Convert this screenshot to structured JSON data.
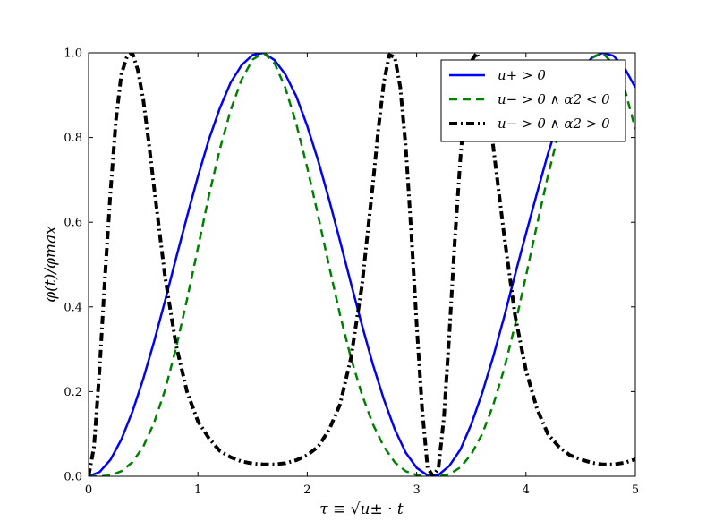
{
  "chart_data": {
    "type": "line",
    "xlabel": "τ ≡ √u± · t",
    "ylabel": "φ(t)/φmax",
    "xlim": [
      0,
      5
    ],
    "ylim": [
      0,
      1
    ],
    "x_ticks": [
      "0",
      "1",
      "2",
      "3",
      "4",
      "5"
    ],
    "y_ticks": [
      "0.0",
      "0.2",
      "0.4",
      "0.6",
      "0.8",
      "1.0"
    ],
    "grid": false,
    "legend_position": "top-right",
    "series": [
      {
        "name": "u+ > 0",
        "color": "#0000ff",
        "style": "solid",
        "x": [
          0,
          0.1,
          0.2,
          0.3,
          0.4,
          0.5,
          0.6,
          0.7,
          0.8,
          0.9,
          1.0,
          1.1,
          1.2,
          1.3,
          1.4,
          1.5,
          1.6,
          1.7,
          1.8,
          1.9,
          2.0,
          2.1,
          2.2,
          2.3,
          2.4,
          2.5,
          2.6,
          2.7,
          2.8,
          2.9,
          3.0,
          3.1,
          3.2,
          3.3,
          3.4,
          3.5,
          3.6,
          3.7,
          3.8,
          3.9,
          4.0,
          4.1,
          4.2,
          4.3,
          4.4,
          4.5,
          4.6,
          4.7,
          4.8,
          4.9,
          5.0
        ],
        "y": [
          0.0,
          0.01,
          0.039,
          0.087,
          0.152,
          0.23,
          0.319,
          0.415,
          0.515,
          0.613,
          0.708,
          0.795,
          0.869,
          0.93,
          0.971,
          0.995,
          1.0,
          0.983,
          0.949,
          0.897,
          0.827,
          0.745,
          0.653,
          0.555,
          0.455,
          0.357,
          0.264,
          0.182,
          0.111,
          0.056,
          0.02,
          0.002,
          0.003,
          0.025,
          0.063,
          0.123,
          0.197,
          0.282,
          0.376,
          0.476,
          0.573,
          0.668,
          0.761,
          0.842,
          0.907,
          0.956,
          0.988,
          1.0,
          0.993,
          0.965,
          0.918
        ]
      },
      {
        "name": "u− > 0 ∧ α2 < 0",
        "color": "#008000",
        "style": "dashed",
        "x": [
          0,
          0.1,
          0.2,
          0.3,
          0.4,
          0.5,
          0.6,
          0.7,
          0.8,
          0.9,
          1.0,
          1.1,
          1.2,
          1.3,
          1.4,
          1.5,
          1.6,
          1.7,
          1.8,
          1.9,
          2.0,
          2.1,
          2.2,
          2.3,
          2.4,
          2.5,
          2.6,
          2.7,
          2.8,
          2.9,
          3.0,
          3.1,
          3.2,
          3.3,
          3.4,
          3.5,
          3.6,
          3.7,
          3.8,
          3.9,
          4.0,
          4.1,
          4.2,
          4.3,
          4.4,
          4.5,
          4.6,
          4.7,
          4.8,
          4.9,
          5.0
        ],
        "y": [
          0.0,
          0.0,
          0.002,
          0.012,
          0.033,
          0.07,
          0.127,
          0.204,
          0.303,
          0.417,
          0.539,
          0.662,
          0.772,
          0.865,
          0.937,
          0.984,
          1.0,
          0.976,
          0.917,
          0.832,
          0.729,
          0.615,
          0.496,
          0.381,
          0.279,
          0.193,
          0.123,
          0.07,
          0.033,
          0.012,
          0.003,
          0.0,
          0.0,
          0.005,
          0.021,
          0.052,
          0.1,
          0.168,
          0.253,
          0.357,
          0.473,
          0.593,
          0.709,
          0.812,
          0.894,
          0.953,
          0.989,
          1.0,
          0.973,
          0.917,
          0.82
        ]
      },
      {
        "name": "u− > 0 ∧ α2 > 0",
        "color": "#000000",
        "style": "dash-dot",
        "x": [
          0,
          0.05,
          0.1,
          0.15,
          0.2,
          0.25,
          0.3,
          0.35,
          0.4,
          0.45,
          0.5,
          0.55,
          0.6,
          0.7,
          0.8,
          0.9,
          1.0,
          1.1,
          1.2,
          1.3,
          1.4,
          1.5,
          1.6,
          1.7,
          1.8,
          1.9,
          2.0,
          2.1,
          2.2,
          2.3,
          2.4,
          2.5,
          2.6,
          2.65,
          2.7,
          2.75,
          2.8,
          2.85,
          2.9,
          2.95,
          3.0,
          3.05,
          3.1,
          3.15,
          3.2,
          3.25,
          3.3,
          3.35,
          3.4,
          3.45,
          3.5,
          3.55,
          3.6,
          3.65,
          3.7,
          3.8,
          3.9,
          4.0,
          4.1,
          4.2,
          4.3,
          4.4,
          4.5,
          4.6,
          4.7,
          4.8,
          4.9,
          5.0
        ],
        "y": [
          0.0,
          0.07,
          0.25,
          0.47,
          0.67,
          0.84,
          0.95,
          0.99,
          1.0,
          0.96,
          0.89,
          0.79,
          0.68,
          0.47,
          0.31,
          0.2,
          0.13,
          0.09,
          0.06,
          0.045,
          0.035,
          0.03,
          0.028,
          0.028,
          0.031,
          0.038,
          0.05,
          0.07,
          0.11,
          0.17,
          0.28,
          0.45,
          0.69,
          0.82,
          0.93,
          0.995,
          0.99,
          0.92,
          0.78,
          0.58,
          0.36,
          0.16,
          0.02,
          0.0,
          0.02,
          0.14,
          0.34,
          0.56,
          0.75,
          0.9,
          0.98,
          1.0,
          0.96,
          0.88,
          0.78,
          0.57,
          0.38,
          0.25,
          0.16,
          0.1,
          0.07,
          0.05,
          0.04,
          0.032,
          0.028,
          0.028,
          0.032,
          0.04
        ]
      }
    ]
  }
}
